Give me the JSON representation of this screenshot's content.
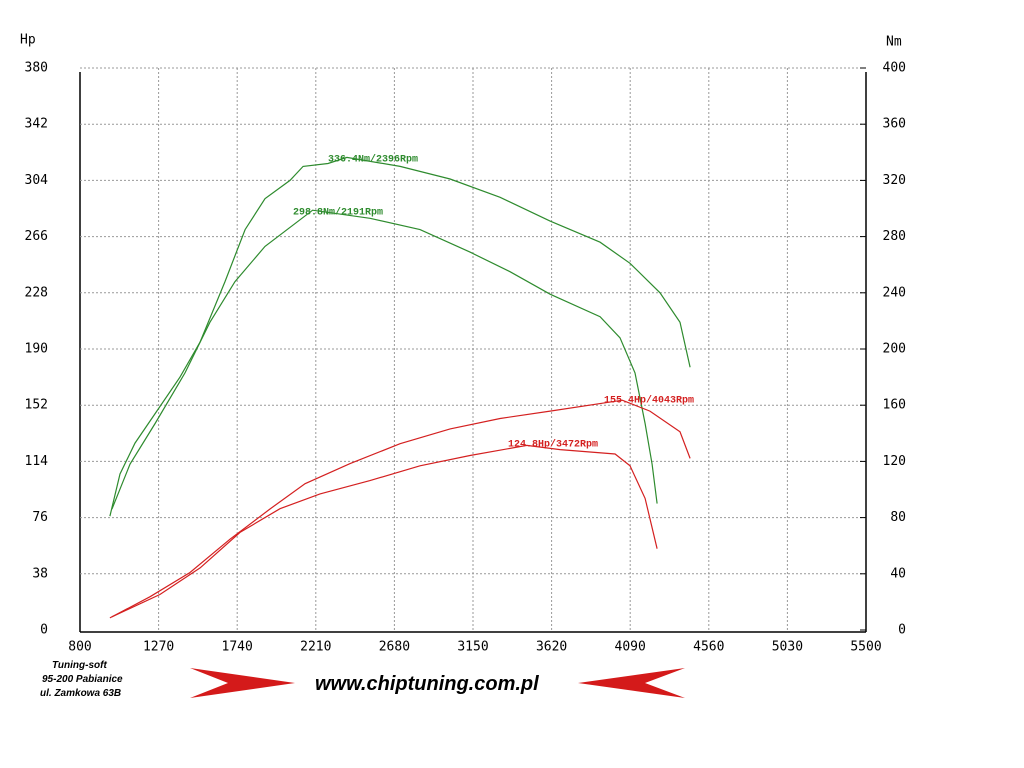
{
  "chart_data": {
    "type": "line",
    "y_label": "Hp",
    "y2_label": "Nm",
    "xlim": [
      800,
      5500
    ],
    "xticks": [
      800,
      1270,
      1740,
      2210,
      2680,
      3150,
      3620,
      4090,
      4560,
      5030,
      5500
    ],
    "ylim": [
      0,
      380
    ],
    "yticks": [
      0,
      38,
      76,
      114,
      152,
      190,
      228,
      266,
      304,
      342,
      380
    ],
    "y2lim": [
      0,
      400
    ],
    "y2ticks": [
      0,
      40,
      80,
      120,
      160,
      200,
      240,
      280,
      320,
      360,
      400
    ],
    "grid": true,
    "series": [
      {
        "color": "#2e8b2e",
        "axis": "y2",
        "x": [
          979,
          1039,
          1129,
          1249,
          1398,
          1518,
          1667,
          1787,
          1906,
          2056,
          2134,
          2283,
          2396,
          2714,
          3013,
          3312,
          3611,
          3910,
          4089,
          4268,
          4388,
          4448
        ],
        "values": [
          81,
          111,
          133,
          154,
          180,
          205,
          248,
          285,
          307,
          320,
          330,
          332,
          336.4,
          330,
          321,
          308,
          291,
          276,
          261,
          240,
          219,
          187
        ]
      },
      {
        "color": "#2e8b2e",
        "axis": "y2",
        "x": [
          991,
          1099,
          1249,
          1428,
          1577,
          1727,
          1906,
          2191,
          2534,
          2833,
          3132,
          3371,
          3611,
          3910,
          4029,
          4119,
          4179,
          4221,
          4251
        ],
        "values": [
          86,
          118,
          147,
          183,
          219,
          248,
          273,
          298.8,
          293,
          285,
          269,
          255,
          239,
          223,
          208,
          183,
          147,
          118,
          90
        ]
      },
      {
        "color": "#d42020",
        "x": [
          979,
          1219,
          1458,
          1697,
          1936,
          2146,
          2415,
          2714,
          3013,
          3312,
          3611,
          4043,
          4208,
          4388,
          4448
        ],
        "values": [
          8.2,
          22.5,
          38.9,
          61.4,
          81.8,
          98.9,
          112.5,
          126,
          136,
          143,
          148,
          155.4,
          148,
          134,
          116
        ]
      },
      {
        "color": "#d42020",
        "x": [
          991,
          1278,
          1518,
          1757,
          1996,
          2235,
          2534,
          2833,
          3132,
          3472,
          3671,
          4000,
          4089,
          4179,
          4251
        ],
        "values": [
          8.9,
          24,
          42,
          66,
          82,
          92,
          101,
          111,
          118,
          124.8,
          122,
          119,
          111,
          89,
          55
        ]
      }
    ],
    "annotations": [
      "336.4Nm/2396Rpm",
      "298.8Nm/2191Rpm",
      "155.4Hp/4043Rpm",
      "124.8Hp/3472Rpm"
    ]
  },
  "footer": {
    "company": "Tuning-soft",
    "address1": "95-200 Pabianice",
    "address2": "ul. Zamkowa 63B",
    "url": "www.chiptuning.com.pl"
  }
}
